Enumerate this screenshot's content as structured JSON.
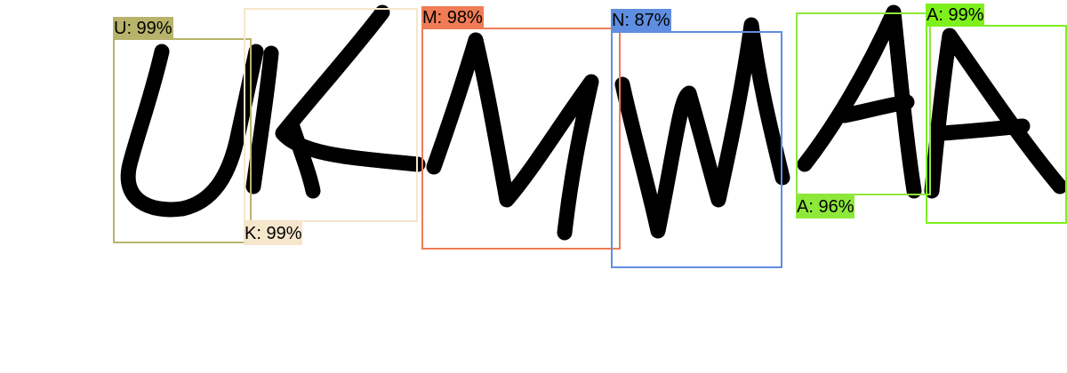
{
  "detections": [
    {
      "label": "U: 99%",
      "color": "#b8b36b"
    },
    {
      "label": "K: 99%",
      "color": "#f5e6cc"
    },
    {
      "label": "M: 98%",
      "color": "#f07c56"
    },
    {
      "label": "N: 87%",
      "color": "#5f8ee0"
    },
    {
      "label": "A: 96%",
      "color": "#8de83a"
    },
    {
      "label": "A: 99%",
      "color": "#7ef01c"
    }
  ]
}
